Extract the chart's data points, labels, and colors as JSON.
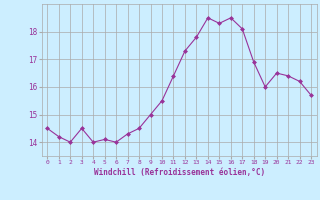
{
  "x": [
    0,
    1,
    2,
    3,
    4,
    5,
    6,
    7,
    8,
    9,
    10,
    11,
    12,
    13,
    14,
    15,
    16,
    17,
    18,
    19,
    20,
    21,
    22,
    23
  ],
  "y": [
    14.5,
    14.2,
    14.0,
    14.5,
    14.0,
    14.1,
    14.0,
    14.3,
    14.5,
    15.0,
    15.5,
    16.4,
    17.3,
    17.8,
    18.5,
    18.3,
    18.5,
    18.1,
    16.9,
    16.0,
    16.5,
    16.4,
    16.2,
    15.7
  ],
  "line_color": "#993399",
  "marker": "D",
  "marker_size": 2,
  "bg_color": "#cceeff",
  "grid_color": "#aaaaaa",
  "xlabel": "Windchill (Refroidissement éolien,°C)",
  "xlabel_color": "#993399",
  "tick_color": "#993399",
  "ylim": [
    13.5,
    19.0
  ],
  "xlim": [
    -0.5,
    23.5
  ],
  "yticks": [
    14,
    15,
    16,
    17,
    18
  ],
  "xticks": [
    0,
    1,
    2,
    3,
    4,
    5,
    6,
    7,
    8,
    9,
    10,
    11,
    12,
    13,
    14,
    15,
    16,
    17,
    18,
    19,
    20,
    21,
    22,
    23
  ]
}
